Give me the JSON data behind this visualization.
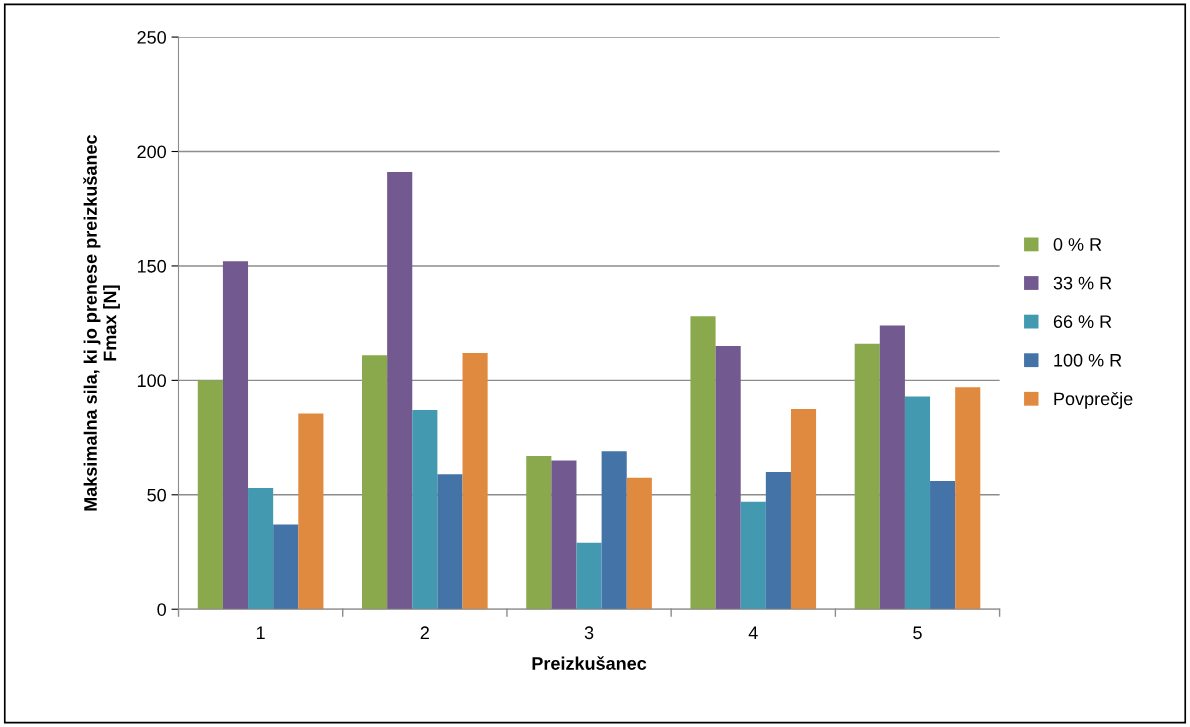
{
  "chart_data": {
    "type": "bar",
    "xlabel": "Preizkušanec",
    "ylabel": "Maksimalna sila, ki jo prenese preizkušanec\nFmax [N]",
    "categories": [
      "1",
      "2",
      "3",
      "4",
      "5"
    ],
    "series": [
      {
        "name": "0 % R",
        "color": "#8aa84c",
        "values": [
          100,
          111,
          67,
          128,
          116
        ]
      },
      {
        "name": "33 % R",
        "color": "#72598f",
        "values": [
          152,
          191,
          65,
          115,
          124
        ]
      },
      {
        "name": "66 % R",
        "color": "#4299b0",
        "values": [
          53,
          87,
          29,
          47,
          93
        ]
      },
      {
        "name": "100 % R",
        "color": "#4473a8",
        "values": [
          37,
          59,
          69,
          60,
          56
        ]
      },
      {
        "name": "Povprečje",
        "color": "#df8a3e",
        "values": [
          85.5,
          112,
          57.5,
          87.5,
          97
        ]
      }
    ],
    "ylim": [
      0,
      250
    ],
    "yticks": [
      0,
      50,
      100,
      150,
      200,
      250
    ],
    "grid": "y",
    "legend": "right"
  }
}
